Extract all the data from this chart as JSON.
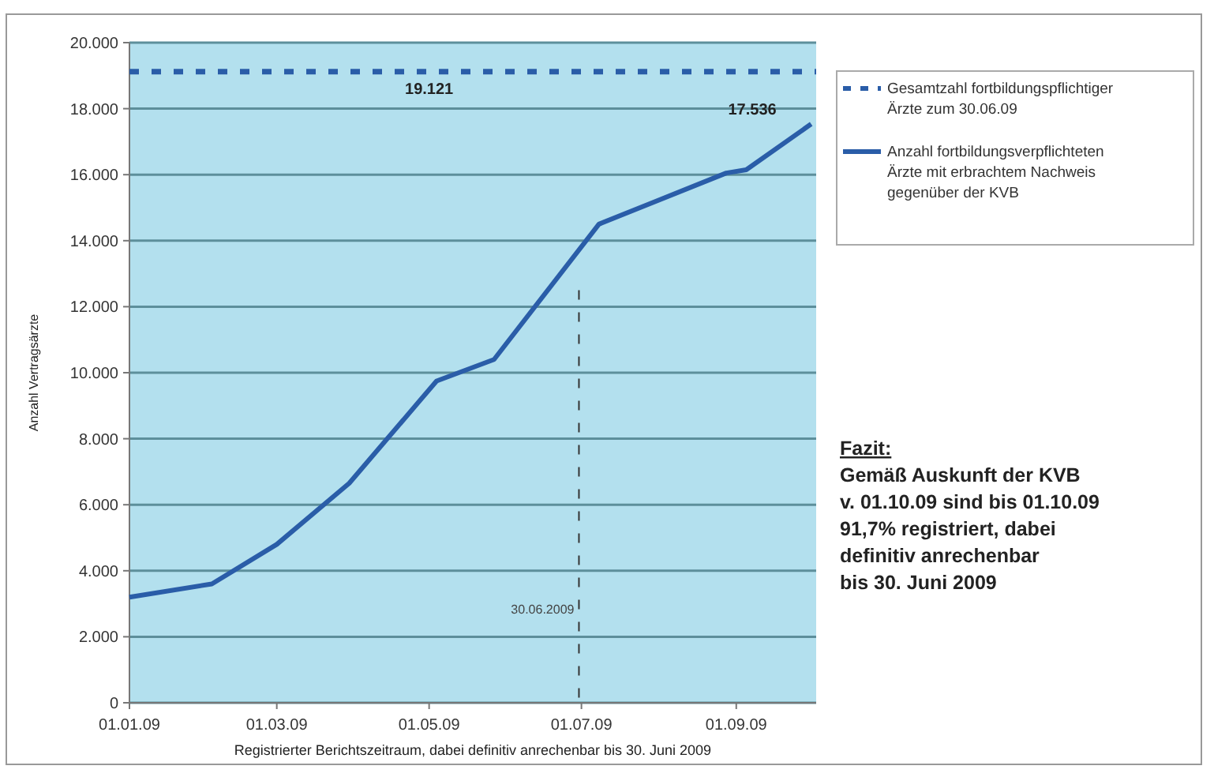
{
  "chart_data": {
    "type": "line",
    "xlabel": "Registrierter Berichtszeitraum, dabei definitiv anrechenbar bis 30. Juni 2009",
    "ylabel": "Anzahl Vertragsärzte",
    "xlim": [
      "2009-01-01",
      "2009-10-03"
    ],
    "xticks": [
      {
        "value": "2009-01-01",
        "label": "01.01.09"
      },
      {
        "value": "2009-03-01",
        "label": "01.03.09"
      },
      {
        "value": "2009-05-01",
        "label": "01.05.09"
      },
      {
        "value": "2009-07-01",
        "label": "01.07.09"
      },
      {
        "value": "2009-09-01",
        "label": "01.09.09"
      }
    ],
    "ylim": [
      0,
      20000
    ],
    "yticks": [
      {
        "value": 0,
        "label": "0"
      },
      {
        "value": 2000,
        "label": "2.000"
      },
      {
        "value": 4000,
        "label": "4.000"
      },
      {
        "value": 6000,
        "label": "6.000"
      },
      {
        "value": 8000,
        "label": "8.000"
      },
      {
        "value": 10000,
        "label": "10.000"
      },
      {
        "value": 12000,
        "label": "12.000"
      },
      {
        "value": 14000,
        "label": "14.000"
      },
      {
        "value": 16000,
        "label": "16.000"
      },
      {
        "value": 18000,
        "label": "18.000"
      },
      {
        "value": 20000,
        "label": "20.000"
      }
    ],
    "grid": "y",
    "legend": "right",
    "marker": "none",
    "series": [
      {
        "name": "Gesamtzahl fortbildungspflichtiger Ärzte zum 30.06.09",
        "color": "#2a5da8",
        "line_style": "dashed",
        "x": [
          "2009-01-01",
          "2009-10-03"
        ],
        "values": [
          19121,
          19121
        ]
      },
      {
        "name": "Anzahl fortbildungsverpflichteten Ärzte mit erbrachtem Nachweis gegenüber der KVB",
        "color": "#2a5da8",
        "line_style": "solid",
        "x": [
          "2009-01-01",
          "2009-02-03",
          "2009-03-01",
          "2009-03-30",
          "2009-05-04",
          "2009-05-27",
          "2009-07-08",
          "2009-08-28",
          "2009-09-05",
          "2009-10-01"
        ],
        "values": [
          3200,
          3600,
          4800,
          6650,
          9750,
          10400,
          14500,
          16050,
          16150,
          17536
        ]
      }
    ],
    "ref_lines": [
      {
        "axis": "x",
        "value": "2009-06-30",
        "label": "30.06.2009",
        "color": "#333333",
        "line_style": "dashed"
      }
    ],
    "annotations": [
      {
        "text": "19.121",
        "x": "2009-05-01",
        "y": 19121
      },
      {
        "text": "17.536",
        "x": "2009-10-01",
        "y": 17536
      },
      "Fazit:\nGemäß Auskunft der KVB\nv. 01.10.09 sind bis 01.10.09\n91,7% registriert, dabei\ndefinitiv anrechenbar\nbis 30. Juni 2009"
    ]
  }
}
